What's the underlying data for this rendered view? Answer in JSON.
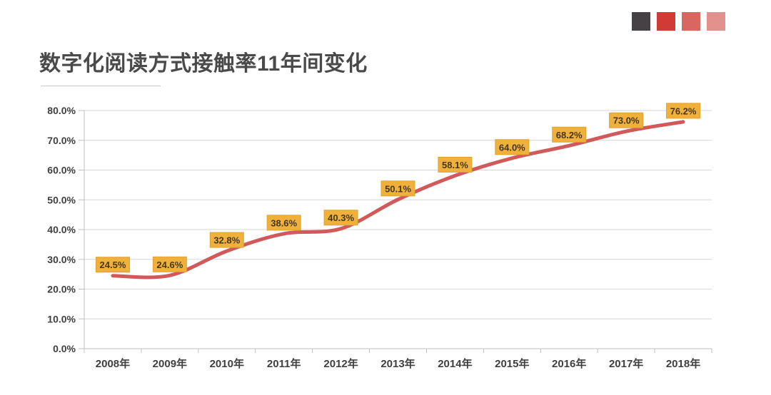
{
  "header": {
    "title": "数字化阅读方式接触率11年间变化",
    "decor_squares": [
      "#454145",
      "#D03B36",
      "#D8685F",
      "#E2928D"
    ]
  },
  "chart_data": {
    "type": "line",
    "title": "数字化阅读方式接触率11年间变化",
    "categories": [
      "2008年",
      "2009年",
      "2010年",
      "2011年",
      "2012年",
      "2013年",
      "2014年",
      "2015年",
      "2016年",
      "2017年",
      "2018年"
    ],
    "series": [
      {
        "name": "数字化阅读方式接触率",
        "values": [
          24.5,
          24.6,
          32.8,
          38.6,
          40.3,
          50.1,
          58.1,
          64.0,
          68.2,
          73.0,
          76.2
        ]
      }
    ],
    "data_labels": [
      "24.5%",
      "24.6%",
      "32.8%",
      "38.6%",
      "40.3%",
      "50.1%",
      "58.1%",
      "64.0%",
      "68.2%",
      "73.0%",
      "76.2%"
    ],
    "ytick_labels": [
      "0.0%",
      "10.0%",
      "20.0%",
      "30.0%",
      "40.0%",
      "50.0%",
      "60.0%",
      "70.0%",
      "80.0%"
    ],
    "ylim": [
      0,
      80
    ],
    "ytick_step": 10,
    "grid": true,
    "legend": "none",
    "smooth_line": true,
    "colors": {
      "line": "#D1595A",
      "label_bg": "#F0B13C",
      "label_border": "#E2A12E",
      "label_text": "#44371F",
      "axis": "#BFBFBF",
      "grid": "#D6D6D6",
      "tick_text": "#3F3F3F"
    }
  }
}
